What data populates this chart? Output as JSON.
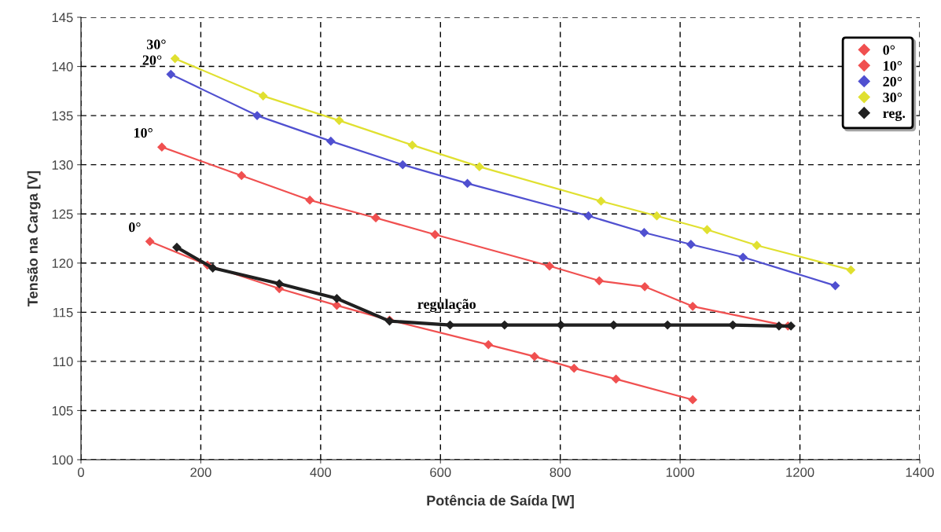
{
  "chart_data": {
    "type": "line",
    "xlabel": "Potência de Saída [W]",
    "ylabel": "Tensão na Carga [V]",
    "xlim": [
      0,
      1400
    ],
    "xticks": [
      0,
      200,
      400,
      600,
      800,
      1000,
      1200,
      1400
    ],
    "ylim": [
      100,
      145
    ],
    "yticks": [
      100,
      105,
      110,
      115,
      120,
      125,
      130,
      135,
      140,
      145
    ],
    "grid": true,
    "legend": "top right",
    "marker": "diamond",
    "line_style": "solid",
    "series": [
      {
        "name": "0°",
        "color": "#f05050",
        "x": [
          115,
          211,
          331,
          427,
          515,
          680,
          757,
          823,
          893,
          1021
        ],
        "values": [
          122.2,
          119.8,
          117.4,
          115.7,
          114.2,
          111.7,
          110.5,
          109.3,
          108.2,
          106.1
        ]
      },
      {
        "name": "10°",
        "color": "#f05050",
        "x": [
          135,
          268,
          382,
          492,
          591,
          782,
          865,
          941,
          1021,
          1180
        ],
        "values": [
          131.8,
          128.9,
          126.4,
          124.6,
          122.9,
          119.7,
          118.2,
          117.6,
          115.6,
          113.6
        ]
      },
      {
        "name": "20°",
        "color": "#5050d0",
        "x": [
          150,
          294,
          417,
          537,
          645,
          847,
          940,
          1018,
          1105,
          1259
        ],
        "values": [
          139.2,
          135.0,
          132.4,
          130.0,
          128.1,
          124.8,
          123.1,
          121.9,
          120.6,
          117.7
        ]
      },
      {
        "name": "30°",
        "color": "#e0e030",
        "x": [
          157,
          304,
          431,
          553,
          665,
          868,
          961,
          1045,
          1128,
          1285
        ],
        "values": [
          140.8,
          137.0,
          134.5,
          132.0,
          129.8,
          126.3,
          124.8,
          123.4,
          121.8,
          119.3
        ]
      },
      {
        "name": "reg.",
        "color": "#202020",
        "x": [
          160,
          220,
          331,
          427,
          515,
          616,
          707,
          801,
          889,
          979,
          1088,
          1165,
          1185
        ],
        "values": [
          121.6,
          119.5,
          117.9,
          116.4,
          114.1,
          113.7,
          113.7,
          113.7,
          113.7,
          113.7,
          113.7,
          113.6,
          113.6
        ]
      }
    ],
    "annotations": [
      {
        "text": "0°",
        "x": 115,
        "y": 122.2
      },
      {
        "text": "10°",
        "x": 135,
        "y": 131.8
      },
      {
        "text": "20°",
        "x": 150,
        "y": 139.2
      },
      {
        "text": "30°",
        "x": 157,
        "y": 140.8
      },
      {
        "text": "regulação",
        "x": 616,
        "y": 113.7
      }
    ]
  }
}
